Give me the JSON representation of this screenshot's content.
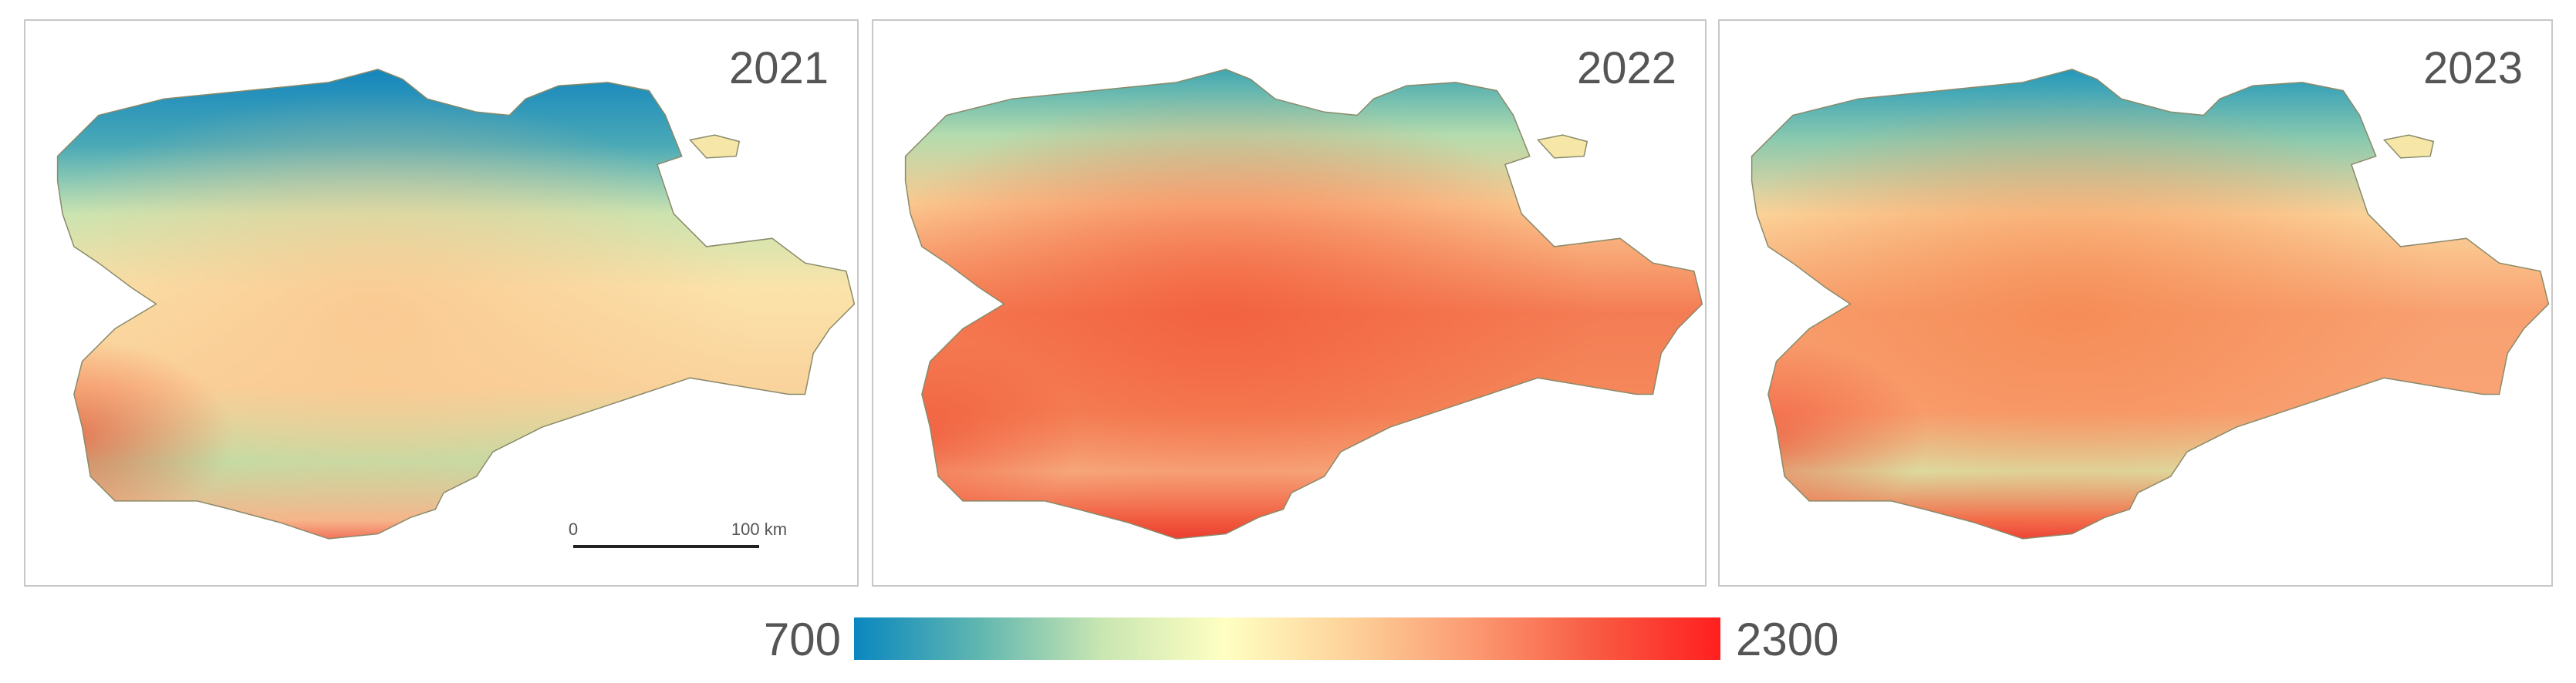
{
  "panels": [
    {
      "year": "2021"
    },
    {
      "year": "2022"
    },
    {
      "year": "2023"
    }
  ],
  "scale_bar": {
    "start": "0",
    "end": "100 km"
  },
  "legend": {
    "min": 700,
    "max": 2300,
    "colors": [
      "#0a87c0",
      "#5fb6b0",
      "#c9e6b2",
      "#ffffc2",
      "#fdd29a",
      "#fb9a72",
      "#f85a42",
      "#ff1f1f"
    ]
  }
}
